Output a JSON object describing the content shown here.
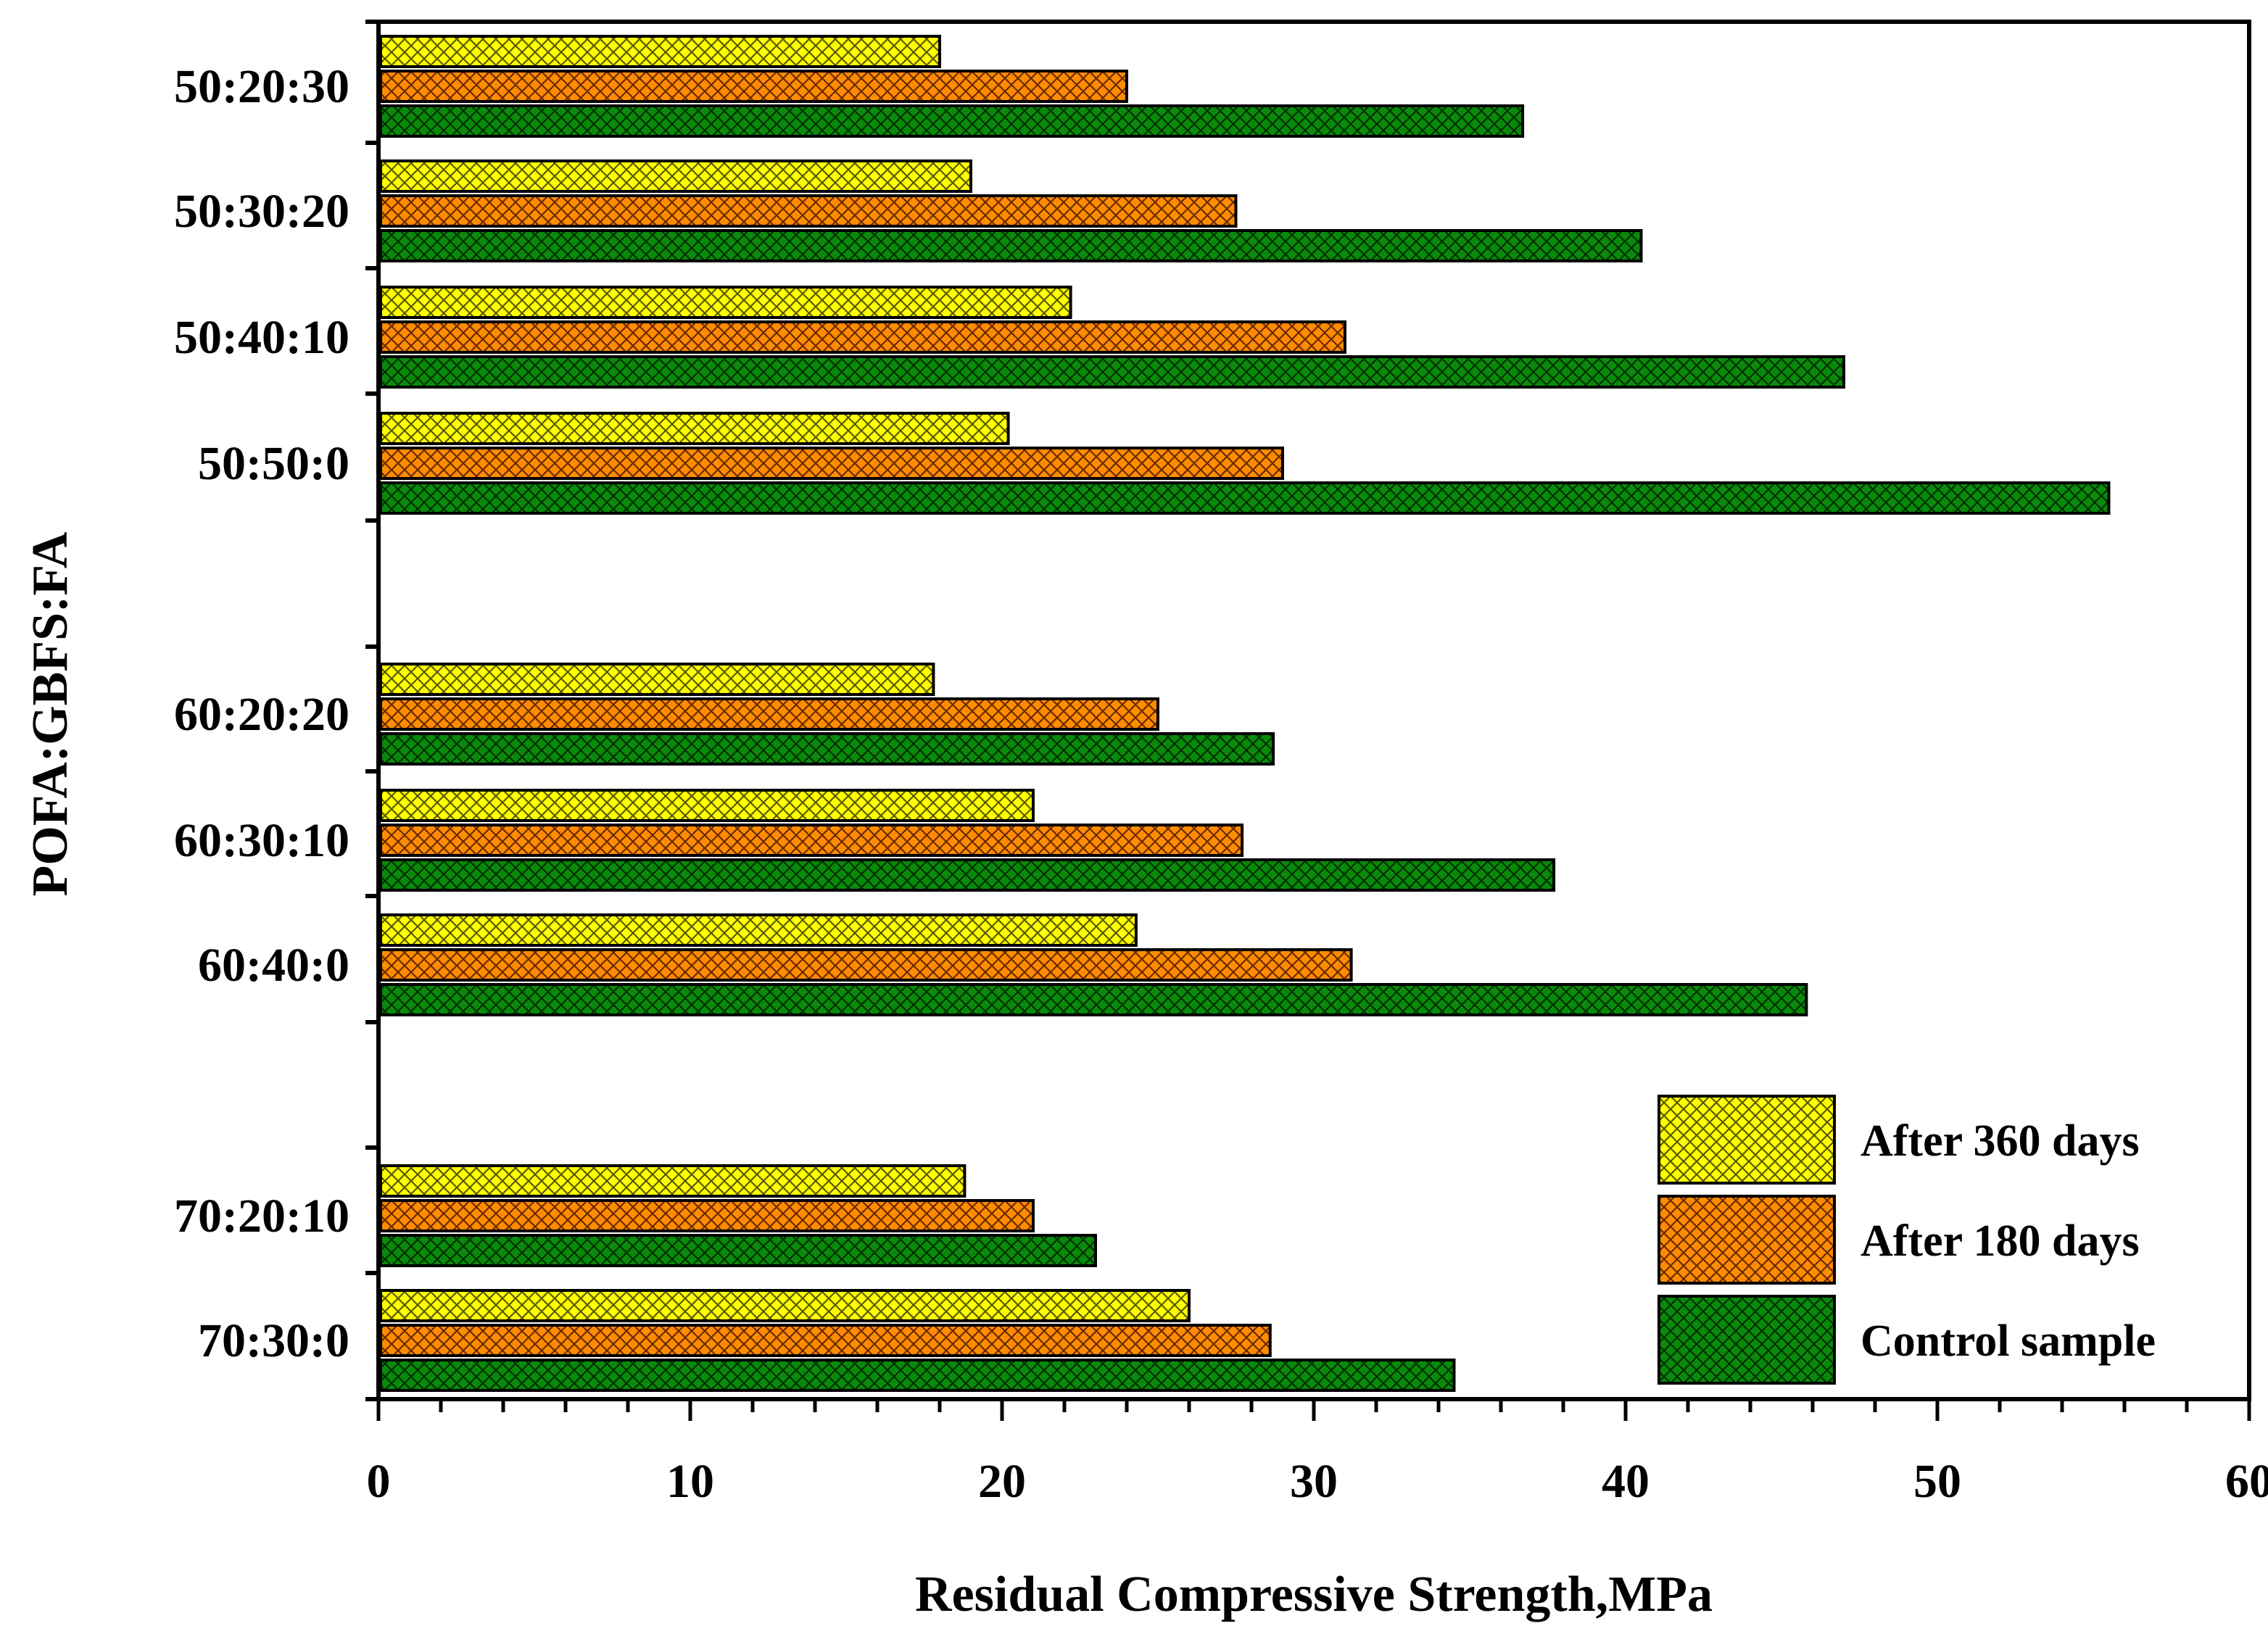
{
  "chart_data": {
    "type": "bar",
    "orientation": "horizontal",
    "title": "",
    "xlabel": "Residual Compressive Strength,MPa",
    "ylabel": "POFA:GBFS:FA",
    "xlim": [
      0,
      60
    ],
    "xticks": [
      "0",
      "10",
      "20",
      "30",
      "40",
      "50",
      "60"
    ],
    "grid": false,
    "legend_position": "bottom-right",
    "categories": [
      "50:20:30",
      "50:30:20",
      "50:40:10",
      "50:50:0",
      "60:20:20",
      "60:30:10",
      "60:40:0",
      "70:20:10",
      "70:30:0"
    ],
    "series": [
      {
        "name": "After 360 days",
        "color": "#ffff00",
        "values": [
          18.0,
          19.0,
          22.2,
          20.2,
          17.8,
          21.0,
          24.3,
          18.8,
          26.0
        ]
      },
      {
        "name": "After 180 days",
        "color": "#ff8c00",
        "values": [
          24.0,
          27.5,
          31.0,
          29.0,
          25.0,
          27.7,
          31.2,
          21.0,
          28.6
        ]
      },
      {
        "name": "Control sample",
        "color": "#0a8a0a",
        "values": [
          36.7,
          40.5,
          47.0,
          55.5,
          28.7,
          37.7,
          45.8,
          23.0,
          34.5
        ]
      }
    ]
  }
}
